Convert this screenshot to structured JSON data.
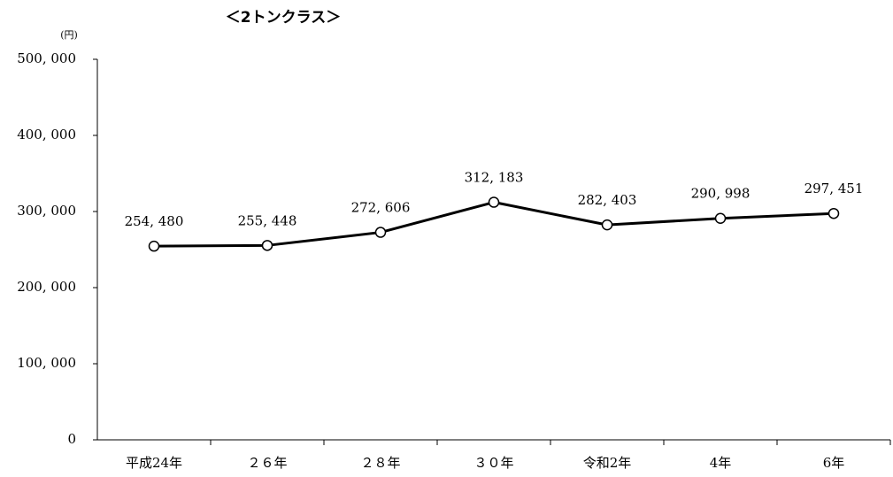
{
  "chart_data": {
    "type": "line",
    "title": "＜2トンクラス＞",
    "unit_label": "(円)",
    "categories": [
      "平成24年",
      "２６年",
      "２８年",
      "３０年",
      "令和2年",
      "4年",
      "6年"
    ],
    "series": [
      {
        "color": "#000000",
        "values": [
          254480,
          255448,
          272606,
          312183,
          282403,
          290998,
          297451
        ],
        "value_labels": [
          "254, 480",
          "255, 448",
          "272, 606",
          "312, 183",
          "282, 403",
          "290, 998",
          "297, 451"
        ]
      }
    ],
    "ylim": [
      0,
      500000
    ],
    "yticks": [
      0,
      {
        "value": 100000,
        "label": "100, 000"
      },
      {
        "value": 200000,
        "label": "200, 000"
      },
      {
        "value": 300000,
        "label": "300, 000"
      },
      {
        "value": 400000,
        "label": "400, 000"
      },
      {
        "value": 500000,
        "label": "500, 000"
      }
    ],
    "grid": false
  }
}
